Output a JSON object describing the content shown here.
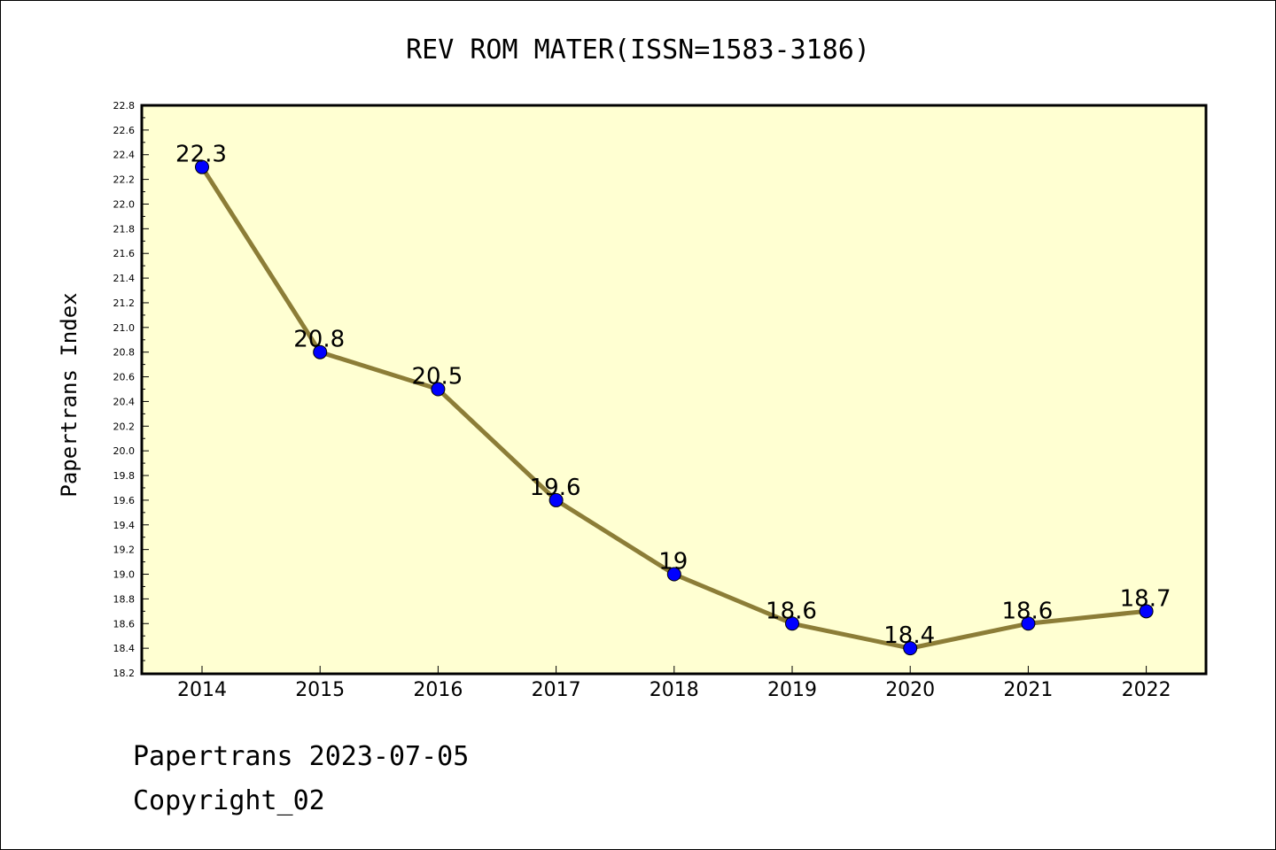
{
  "chart_data": {
    "type": "line",
    "title": "REV ROM MATER(ISSN=1583-3186)",
    "ylabel": "Papertrans Index",
    "xlabel": "",
    "categories": [
      "2014",
      "2015",
      "2016",
      "2017",
      "2018",
      "2019",
      "2020",
      "2021",
      "2022"
    ],
    "values": [
      22.3,
      20.8,
      20.5,
      19.6,
      19,
      18.6,
      18.4,
      18.6,
      18.7
    ],
    "data_labels": [
      "22.3",
      "20.8",
      "20.5",
      "19.6",
      "19",
      "18.6",
      "18.4",
      "18.6",
      "18.7"
    ],
    "ylim": [
      18.2,
      22.8
    ],
    "ytick_labels": [
      "18.2",
      "18.4",
      "18.6",
      "18.8",
      "19.0",
      "19.2",
      "19.4",
      "19.6",
      "19.8",
      "20.0",
      "20.2",
      "20.4",
      "20.6",
      "20.8",
      "21.0",
      "21.2",
      "21.4",
      "21.6",
      "21.8",
      "22.0",
      "22.2",
      "22.4",
      "22.6",
      "22.8"
    ],
    "grid": false,
    "colors": {
      "plot_background": "#ffffd2",
      "line": "#8c7d37",
      "marker": "#0000ff"
    }
  },
  "footer": {
    "line1": "Papertrans 2023-07-05",
    "line2": "Copyright_02"
  }
}
